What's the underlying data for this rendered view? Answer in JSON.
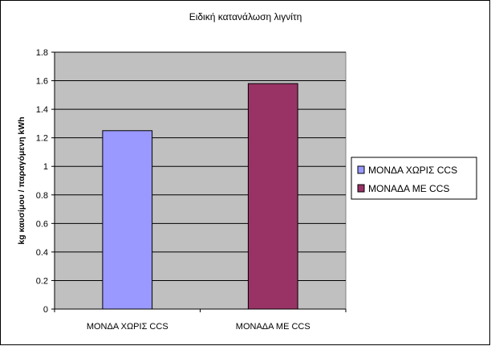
{
  "chart_data": {
    "type": "bar",
    "title": "Ειδική κατανάλωση λιγνίτη",
    "xlabel": "",
    "ylabel": "kg καυσίμου / παραγόμενη kWh",
    "categories": [
      "ΜΟΝΔΑ ΧΩΡΙΣ CCS",
      "ΜΟΝΑΔΑ ΜΕ CCS"
    ],
    "values": [
      1.25,
      1.58
    ],
    "ylim": [
      0,
      1.8
    ],
    "yticks": [
      "0",
      "0.2",
      "0.4",
      "0.6",
      "0.8",
      "1",
      "1.2",
      "1.4",
      "1.6",
      "1.8"
    ],
    "grid": true,
    "legend": {
      "placement": "right",
      "entries": [
        "ΜΟΝΔΑ ΧΩΡΙΣ CCS",
        "ΜΟΝΑΔΑ ΜΕ CCS"
      ]
    },
    "colors": {
      "series": [
        "#9999ff",
        "#993366"
      ],
      "plot_background": "#c0c0c0",
      "gridline": "#000000"
    }
  }
}
